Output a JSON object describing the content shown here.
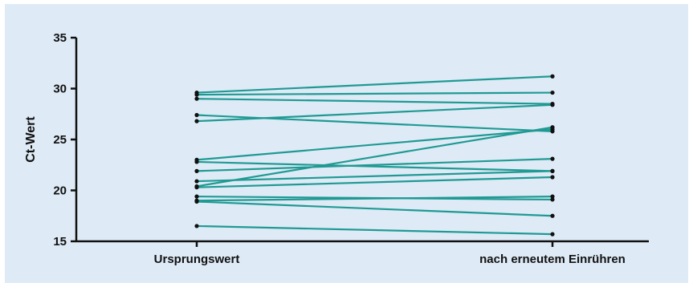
{
  "chart_data": {
    "type": "line",
    "ylabel": "Ct-Wert",
    "xlabel": "",
    "categories": [
      "Ursprungswert",
      "nach erneutem Einrühren"
    ],
    "ylim": [
      15,
      35
    ],
    "yticks": [
      15,
      20,
      25,
      30,
      35
    ],
    "grid": false,
    "legend": "none",
    "colors": {
      "line": "#1f9a93",
      "marker": "#111111",
      "axis": "#111111",
      "background": "#deeaf6"
    },
    "series": [
      {
        "values": [
          29.6,
          31.2
        ]
      },
      {
        "values": [
          29.4,
          29.6
        ]
      },
      {
        "values": [
          29.0,
          28.5
        ]
      },
      {
        "values": [
          27.4,
          25.8
        ]
      },
      {
        "values": [
          26.8,
          28.4
        ]
      },
      {
        "values": [
          23.0,
          26.0
        ]
      },
      {
        "values": [
          22.8,
          21.9
        ]
      },
      {
        "values": [
          21.9,
          23.1
        ]
      },
      {
        "values": [
          20.9,
          21.9
        ]
      },
      {
        "values": [
          20.4,
          26.2
        ]
      },
      {
        "values": [
          20.3,
          21.3
        ]
      },
      {
        "values": [
          19.4,
          19.1
        ]
      },
      {
        "values": [
          19.0,
          19.4
        ]
      },
      {
        "values": [
          18.9,
          17.5
        ]
      },
      {
        "values": [
          16.5,
          15.7
        ]
      }
    ]
  }
}
